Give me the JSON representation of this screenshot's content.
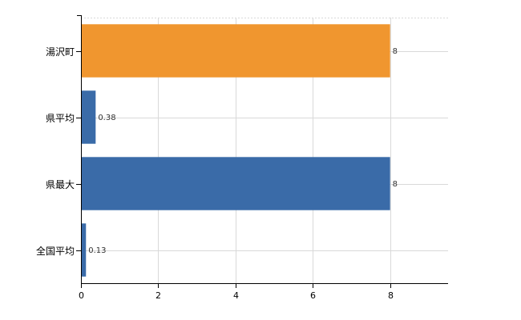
{
  "chart_data": {
    "type": "bar",
    "orientation": "horizontal",
    "categories": [
      "湯沢町",
      "県平均",
      "県最大",
      "全国平均"
    ],
    "values": [
      8,
      0.38,
      8,
      0.13
    ],
    "value_labels": [
      "8",
      "0.38",
      "8",
      "0.13"
    ],
    "colors": [
      "#f0962f",
      "#3a6ba8",
      "#3a6ba8",
      "#3a6ba8"
    ],
    "xlim": [
      0,
      9.5
    ],
    "x_ticks": [
      0,
      2,
      4,
      6,
      8
    ],
    "x_tick_labels": [
      "0",
      "2",
      "4",
      "6",
      "8"
    ],
    "grid": true,
    "legend": "none",
    "title": "",
    "xlabel": "",
    "ylabel": ""
  }
}
